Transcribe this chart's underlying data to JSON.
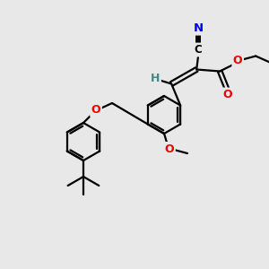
{
  "bg_color": "#e8e8e8",
  "atom_colors": {
    "C": "#000000",
    "N": "#0000ee",
    "O": "#ee0000",
    "H": "#448888"
  },
  "bond_color": "#000000",
  "bond_lw": 1.6,
  "figsize": [
    3.0,
    3.0
  ],
  "dpi": 100,
  "xlim": [
    0,
    300
  ],
  "ylim": [
    0,
    300
  ]
}
